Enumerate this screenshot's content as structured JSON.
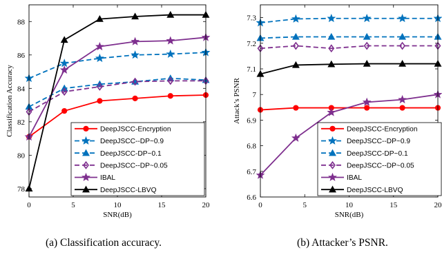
{
  "chart_data": [
    {
      "type": "line",
      "caption": "(a) Classification accuracy.",
      "xlabel": "SNR(dB)",
      "ylabel": "Classification Accuracy",
      "xlim": [
        0,
        20
      ],
      "ylim": [
        77.5,
        89
      ],
      "xticks": [
        0,
        5,
        10,
        15,
        20
      ],
      "yticks": [
        78,
        80,
        82,
        84,
        86,
        88
      ],
      "legend_position": "bottom-right",
      "x": [
        0,
        4,
        8,
        12,
        16,
        20
      ],
      "series": [
        {
          "name": "DeepJSCC-Encryption",
          "color": "#ff0000",
          "dash": "solid",
          "marker": "circle",
          "values": [
            81.1,
            82.65,
            83.25,
            83.4,
            83.55,
            83.6
          ]
        },
        {
          "name": "DeepJSCC--DP~0.9",
          "color": "#0072bd",
          "dash": "dash",
          "marker": "star",
          "values": [
            84.6,
            85.5,
            85.8,
            86.0,
            86.05,
            86.15
          ]
        },
        {
          "name": "DeepJSCC-DP~0.1",
          "color": "#0072bd",
          "dash": "dash",
          "marker": "triangle",
          "values": [
            82.9,
            84.0,
            84.25,
            84.4,
            84.6,
            84.5
          ]
        },
        {
          "name": "DeepJSCC--DP~0.05",
          "color": "#7e2f8e",
          "dash": "dash",
          "marker": "diamond",
          "values": [
            82.6,
            83.8,
            84.1,
            84.4,
            84.45,
            84.45
          ]
        },
        {
          "name": "IBAL",
          "color": "#7e2f8e",
          "dash": "solid",
          "marker": "star",
          "values": [
            81.1,
            85.1,
            86.5,
            86.8,
            86.85,
            87.05
          ]
        },
        {
          "name": "DeepJSCC-LBVQ",
          "color": "#000000",
          "dash": "solid",
          "marker": "triangle",
          "values": [
            78.0,
            86.9,
            88.15,
            88.3,
            88.4,
            88.4
          ]
        }
      ]
    },
    {
      "type": "line",
      "caption": "(b) Attacker’s PSNR.",
      "xlabel": "SNR(dB)",
      "ylabel": "Attack’s PSNR",
      "xlim": [
        0,
        20
      ],
      "ylim": [
        6.6,
        7.35
      ],
      "xticks": [
        0,
        5,
        10,
        15,
        20
      ],
      "yticks": [
        6.6,
        6.7,
        6.8,
        6.9,
        7.0,
        7.1,
        7.2,
        7.3
      ],
      "ytick_labels": [
        "6.6",
        "6.7",
        "6.8",
        "6.9",
        "7",
        "7.1",
        "7.2",
        "7.3"
      ],
      "legend_position": "bottom-right",
      "x": [
        0,
        4,
        8,
        12,
        16,
        20
      ],
      "series": [
        {
          "name": "DeepJSCC-Encryption",
          "color": "#ff0000",
          "dash": "solid",
          "marker": "circle",
          "values": [
            6.94,
            6.948,
            6.948,
            6.948,
            6.948,
            6.948
          ]
        },
        {
          "name": "DeepJSCC--DP~0.9",
          "color": "#0072bd",
          "dash": "dash",
          "marker": "star",
          "values": [
            7.28,
            7.295,
            7.297,
            7.297,
            7.297,
            7.297
          ]
        },
        {
          "name": "DeepJSCC-DP~0.1",
          "color": "#0072bd",
          "dash": "dash",
          "marker": "triangle",
          "values": [
            7.22,
            7.225,
            7.225,
            7.225,
            7.225,
            7.225
          ]
        },
        {
          "name": "DeepJSCC--DP~0.05",
          "color": "#7e2f8e",
          "dash": "dash",
          "marker": "diamond",
          "values": [
            7.18,
            7.19,
            7.18,
            7.19,
            7.19,
            7.19
          ]
        },
        {
          "name": "IBAL",
          "color": "#7e2f8e",
          "dash": "solid",
          "marker": "star",
          "values": [
            6.685,
            6.83,
            6.93,
            6.97,
            6.98,
            7.0
          ]
        },
        {
          "name": "DeepJSCC-LBVQ",
          "color": "#000000",
          "dash": "solid",
          "marker": "triangle",
          "values": [
            7.08,
            7.115,
            7.118,
            7.12,
            7.12,
            7.12
          ]
        }
      ]
    }
  ]
}
